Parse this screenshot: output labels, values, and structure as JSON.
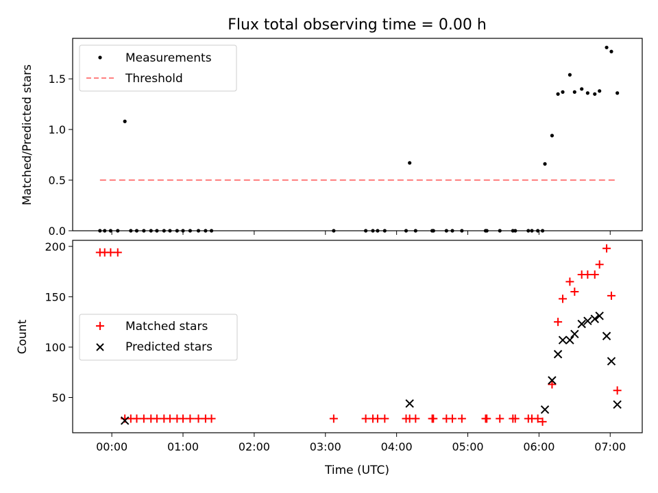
{
  "figure": {
    "title": "Flux total observing time = 0.00 h",
    "xlabel": "Time (UTC)"
  },
  "chart_data": [
    {
      "type": "scatter",
      "ylabel": "Matched/Predicted stars",
      "xlim": [
        "-00:33",
        "07:27"
      ],
      "ylim": [
        0,
        1.9
      ],
      "yticks": [
        0.0,
        0.5,
        1.0,
        1.5
      ],
      "ytick_labels": [
        "0.0",
        "0.5",
        "1.0",
        "1.5"
      ],
      "legend": {
        "placement": "upper-left",
        "entries": [
          "Measurements",
          "Threshold"
        ]
      },
      "series": [
        {
          "name": "Measurements",
          "marker": "dot",
          "color": "#000000",
          "points": [
            [
              "-00:10",
              0
            ],
            [
              "-00:06",
              0
            ],
            [
              "-00:01",
              0
            ],
            [
              "00:05",
              0
            ],
            [
              "00:11",
              1.08
            ],
            [
              "00:16",
              0
            ],
            [
              "00:21",
              0
            ],
            [
              "00:27",
              0
            ],
            [
              "00:33",
              0
            ],
            [
              "00:38",
              0
            ],
            [
              "00:44",
              0
            ],
            [
              "00:49",
              0
            ],
            [
              "00:55",
              0
            ],
            [
              "01:00",
              0
            ],
            [
              "01:06",
              0
            ],
            [
              "01:13",
              0
            ],
            [
              "01:19",
              0
            ],
            [
              "01:24",
              0
            ],
            [
              "03:07",
              0
            ],
            [
              "03:34",
              0
            ],
            [
              "03:40",
              0
            ],
            [
              "03:44",
              0
            ],
            [
              "03:50",
              0
            ],
            [
              "04:08",
              0
            ],
            [
              "04:11",
              0.67
            ],
            [
              "04:16",
              0
            ],
            [
              "04:30",
              0
            ],
            [
              "04:31",
              0
            ],
            [
              "04:42",
              0
            ],
            [
              "04:47",
              0
            ],
            [
              "04:55",
              0
            ],
            [
              "05:15",
              0
            ],
            [
              "05:16",
              0
            ],
            [
              "05:27",
              0
            ],
            [
              "05:38",
              0
            ],
            [
              "05:40",
              0
            ],
            [
              "05:51",
              0
            ],
            [
              "05:54",
              0
            ],
            [
              "05:59",
              0
            ],
            [
              "06:03",
              0
            ],
            [
              "06:05",
              0.66
            ],
            [
              "06:11",
              0.94
            ],
            [
              "06:16",
              1.35
            ],
            [
              "06:20",
              1.37
            ],
            [
              "06:26",
              1.54
            ],
            [
              "06:30",
              1.37
            ],
            [
              "06:36",
              1.4
            ],
            [
              "06:41",
              1.36
            ],
            [
              "06:47",
              1.35
            ],
            [
              "06:51",
              1.38
            ],
            [
              "06:57",
              1.81
            ],
            [
              "07:01",
              1.77
            ],
            [
              "07:06",
              1.36
            ]
          ]
        },
        {
          "name": "Threshold",
          "style": "dashed-line",
          "color": "#ff7f7f",
          "points": [
            [
              "-00:10",
              0.5
            ],
            [
              "07:06",
              0.5
            ]
          ]
        }
      ]
    },
    {
      "type": "scatter",
      "ylabel": "Count",
      "xlim": [
        "-00:33",
        "07:27"
      ],
      "ylim": [
        15,
        206
      ],
      "yticks": [
        50,
        100,
        150,
        200
      ],
      "ytick_labels": [
        "50",
        "100",
        "150",
        "200"
      ],
      "xticks": [
        "00:00",
        "01:00",
        "02:00",
        "03:00",
        "04:00",
        "05:00",
        "06:00",
        "07:00"
      ],
      "xtick_labels": [
        "00:00",
        "01:00",
        "02:00",
        "03:00",
        "04:00",
        "05:00",
        "06:00",
        "07:00"
      ],
      "legend": {
        "placement": "center-left",
        "entries": [
          "Matched stars",
          "Predicted stars"
        ]
      },
      "series": [
        {
          "name": "Matched stars",
          "marker": "plus",
          "color": "#ff0000",
          "points": [
            [
              "-00:10",
              194
            ],
            [
              "-00:06",
              194
            ],
            [
              "-00:01",
              194
            ],
            [
              "00:05",
              194
            ],
            [
              "00:11",
              29
            ],
            [
              "00:16",
              29
            ],
            [
              "00:21",
              29
            ],
            [
              "00:27",
              29
            ],
            [
              "00:33",
              29
            ],
            [
              "00:38",
              29
            ],
            [
              "00:44",
              29
            ],
            [
              "00:49",
              29
            ],
            [
              "00:55",
              29
            ],
            [
              "01:00",
              29
            ],
            [
              "01:06",
              29
            ],
            [
              "01:13",
              29
            ],
            [
              "01:19",
              29
            ],
            [
              "01:24",
              29
            ],
            [
              "03:07",
              29
            ],
            [
              "03:34",
              29
            ],
            [
              "03:40",
              29
            ],
            [
              "03:44",
              29
            ],
            [
              "03:50",
              29
            ],
            [
              "04:08",
              29
            ],
            [
              "04:11",
              29
            ],
            [
              "04:16",
              29
            ],
            [
              "04:30",
              29
            ],
            [
              "04:31",
              29
            ],
            [
              "04:42",
              29
            ],
            [
              "04:47",
              29
            ],
            [
              "04:55",
              29
            ],
            [
              "05:15",
              29
            ],
            [
              "05:16",
              29
            ],
            [
              "05:27",
              29
            ],
            [
              "05:38",
              29
            ],
            [
              "05:40",
              29
            ],
            [
              "05:51",
              29
            ],
            [
              "05:54",
              29
            ],
            [
              "05:59",
              29
            ],
            [
              "06:03",
              26
            ],
            [
              "06:11",
              63
            ],
            [
              "06:16",
              125
            ],
            [
              "06:20",
              148
            ],
            [
              "06:26",
              165
            ],
            [
              "06:30",
              155
            ],
            [
              "06:36",
              172
            ],
            [
              "06:41",
              172
            ],
            [
              "06:47",
              172
            ],
            [
              "06:51",
              182
            ],
            [
              "06:57",
              198
            ],
            [
              "07:01",
              151
            ],
            [
              "07:06",
              57
            ]
          ]
        },
        {
          "name": "Predicted stars",
          "marker": "x",
          "color": "#000000",
          "points": [
            [
              "00:11",
              27
            ],
            [
              "04:11",
              44
            ],
            [
              "06:05",
              38
            ],
            [
              "06:11",
              67
            ],
            [
              "06:16",
              93
            ],
            [
              "06:20",
              107
            ],
            [
              "06:26",
              107
            ],
            [
              "06:30",
              113
            ],
            [
              "06:36",
              123
            ],
            [
              "06:41",
              126
            ],
            [
              "06:47",
              128
            ],
            [
              "06:51",
              131
            ],
            [
              "06:57",
              111
            ],
            [
              "07:01",
              86
            ],
            [
              "07:06",
              43
            ]
          ]
        }
      ]
    }
  ]
}
